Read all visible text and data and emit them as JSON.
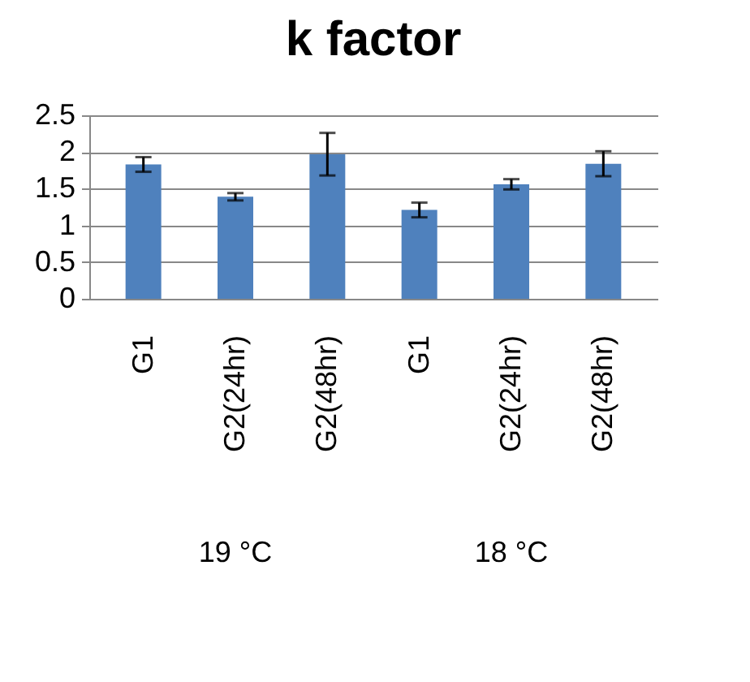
{
  "chart_data": {
    "type": "bar",
    "title": "k factor",
    "categories": [
      "G1",
      "G2(24hr)",
      "G2(48hr)",
      "G1",
      "G2(24hr)",
      "G2(48hr)"
    ],
    "values": [
      1.83,
      1.39,
      1.97,
      1.21,
      1.56,
      1.84
    ],
    "errors": [
      0.1,
      0.05,
      0.29,
      0.1,
      0.07,
      0.17
    ],
    "color": "#4f81bd",
    "ylim": [
      0,
      2.5
    ],
    "yticks": [
      0,
      0.5,
      1,
      1.5,
      2,
      2.5
    ],
    "grid": "y",
    "annotations": [
      "19 °C",
      "18 °C"
    ]
  }
}
